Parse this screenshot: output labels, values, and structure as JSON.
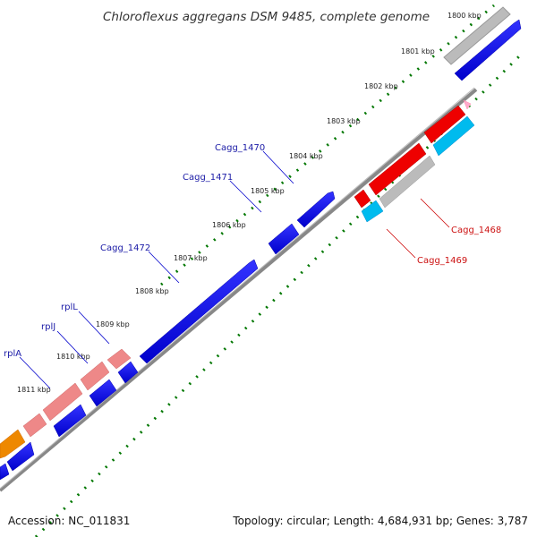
{
  "title": "Chloroflexus aggregans DSM 9485, complete genome",
  "footer": {
    "accession": "Accession: NC_011831",
    "summary": "Topology: circular; Length: 4,684,931 bp; Genes: 3,787"
  },
  "kbp_labels": [
    "1800 kbp",
    "1801 kbp",
    "1802 kbp",
    "1803 kbp",
    "1804 kbp",
    "1805 kbp",
    "1806 kbp",
    "1807 kbp",
    "1808 kbp",
    "1809 kbp",
    "1810 kbp",
    "1811 kbp"
  ],
  "gene_labels": {
    "cagg_1470": "Cagg_1470",
    "cagg_1471": "Cagg_1471",
    "cagg_1472": "Cagg_1472",
    "rplL": "rplL",
    "rplJ": "rplJ",
    "rplA": "rplA",
    "cagg_1468": "Cagg_1468",
    "cagg_1469": "Cagg_1469"
  },
  "colors": {
    "blue_gene": "#0000ee",
    "red_gene": "#ee0000",
    "pink_gene": "#ee8888",
    "grey_gene": "#bbbbbb",
    "cyan_gene": "#00bbee",
    "orange_gene": "#ee8800",
    "backbone": "#888888",
    "ticks": "#007700"
  }
}
